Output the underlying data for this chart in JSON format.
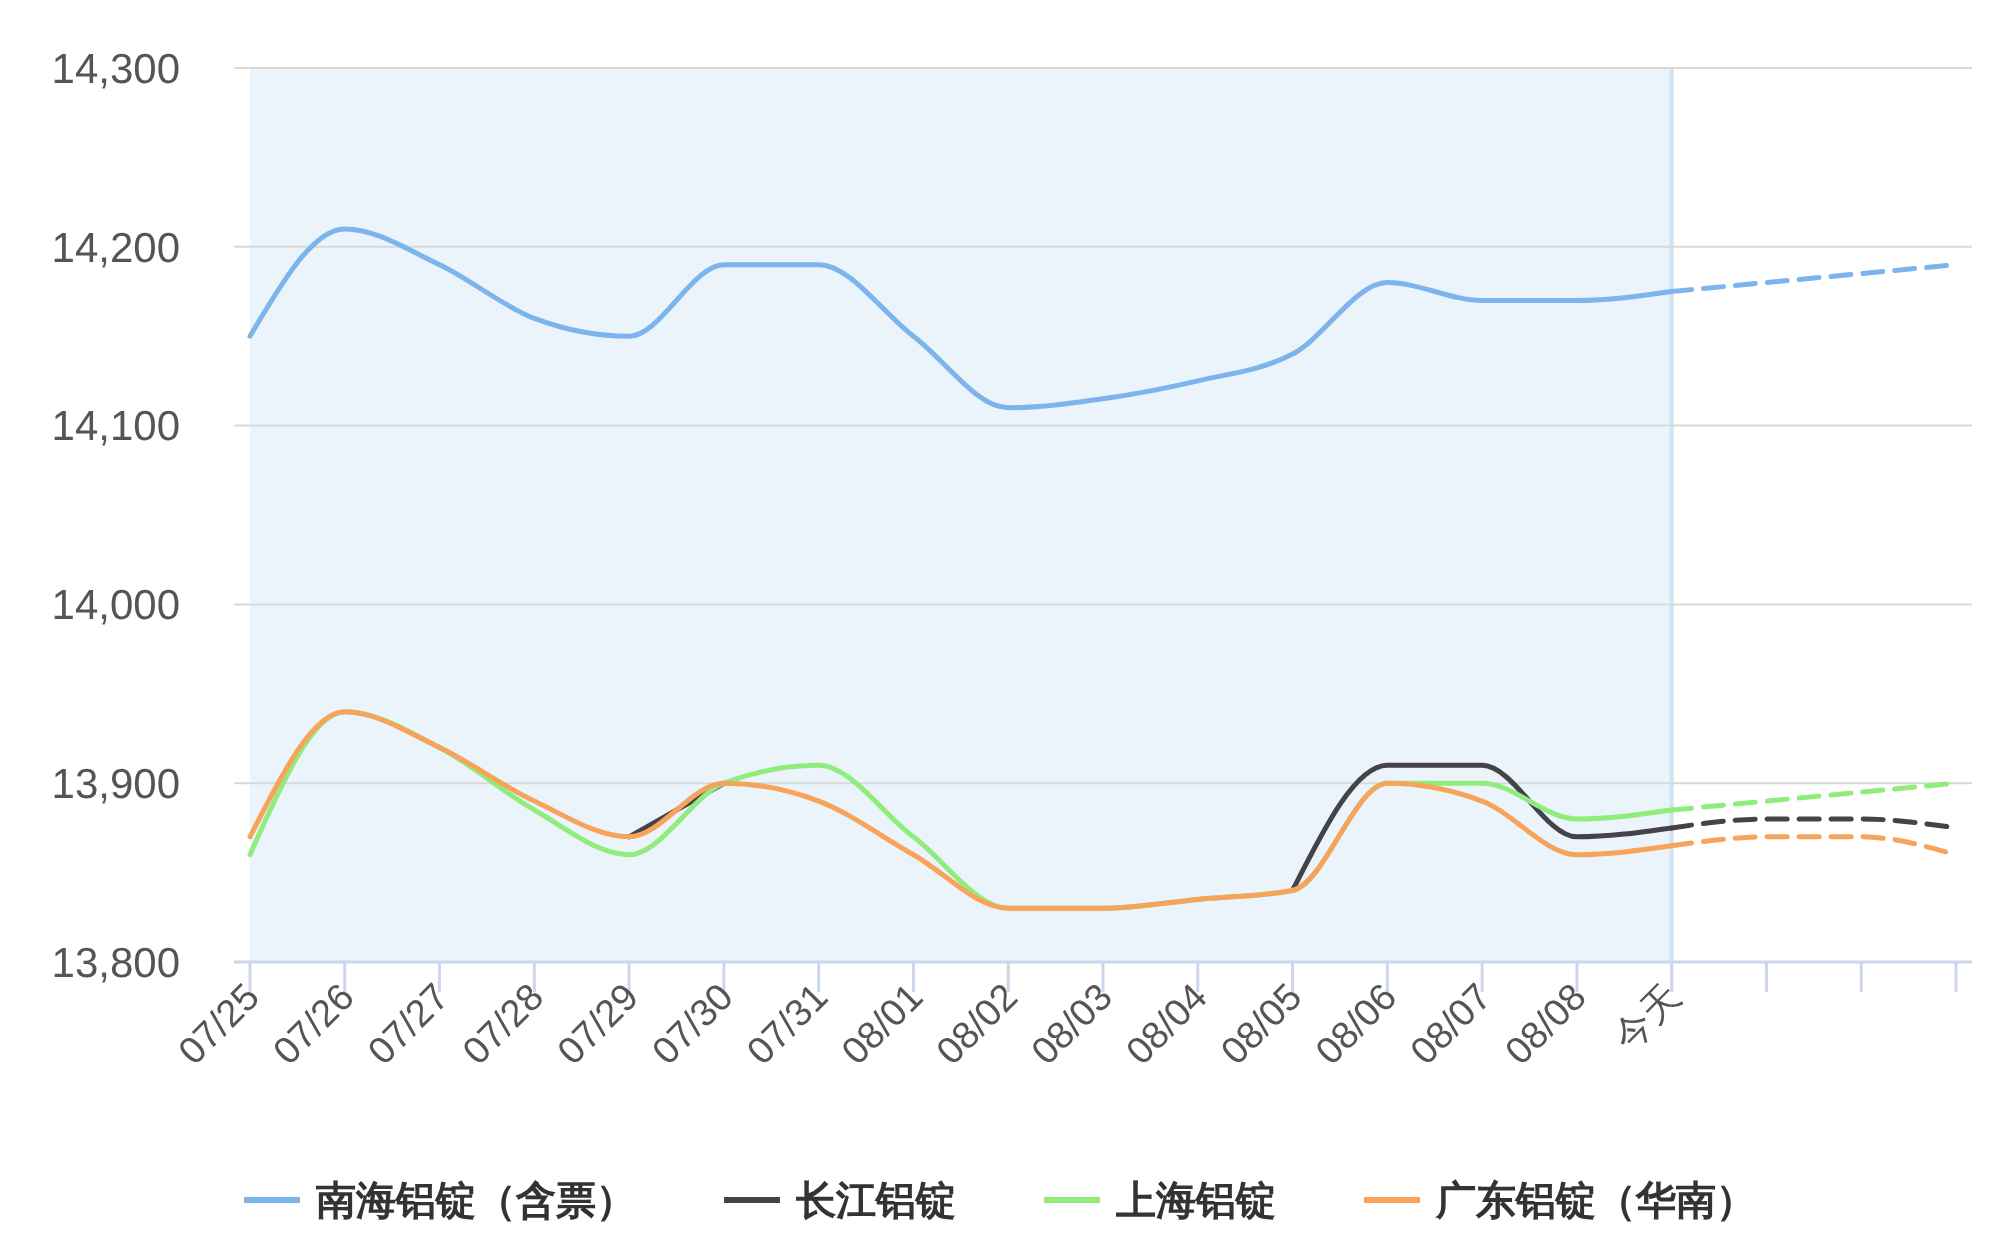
{
  "chart_data": {
    "type": "line",
    "categories": [
      "07/25",
      "07/26",
      "07/27",
      "07/28",
      "07/29",
      "07/30",
      "07/31",
      "08/01",
      "08/02",
      "08/03",
      "08/04",
      "08/05",
      "08/06",
      "08/07",
      "08/08",
      "今天",
      null,
      null,
      null
    ],
    "ylim": [
      13800,
      14300
    ],
    "yticks": [
      {
        "value": 13800,
        "label": "13,800"
      },
      {
        "value": 13900,
        "label": "13,900"
      },
      {
        "value": 14000,
        "label": "14,000"
      },
      {
        "value": 14100,
        "label": "14,100"
      },
      {
        "value": 14200,
        "label": "14,200"
      },
      {
        "value": 14300,
        "label": "14,300"
      }
    ],
    "grid": "y",
    "legend": "bottom",
    "bands": [
      {
        "axis": "x",
        "from": "07/25",
        "to": "今天",
        "color": "#ebf4fa"
      }
    ],
    "ref_lines": [
      {
        "axis": "x",
        "value": "今天",
        "color": "#cfe3f1"
      }
    ],
    "series": [
      {
        "name": "南海铝锭（含票）",
        "color": "#7cb5ec",
        "values": [
          14150,
          14210,
          14190,
          14160,
          14150,
          14190,
          14190,
          14150,
          14110,
          14115,
          14125,
          14140,
          14180,
          14170,
          14170,
          14175,
          null,
          null,
          null
        ]
      },
      {
        "name": "长江铝锭",
        "color": "#434348",
        "values": [
          null,
          null,
          null,
          null,
          13870,
          13900,
          null,
          null,
          null,
          null,
          null,
          13840,
          13910,
          13910,
          13870,
          13875,
          null,
          null,
          null
        ]
      },
      {
        "name": "上海铝锭",
        "color": "#90ed7d",
        "values": [
          13860,
          13940,
          13920,
          13885,
          13860,
          13900,
          13910,
          13870,
          13830,
          13830,
          13835,
          13840,
          13900,
          13900,
          13880,
          13885,
          null,
          null,
          null
        ]
      },
      {
        "name": "广东铝锭（华南）",
        "color": "#f7a35c",
        "values": [
          13870,
          13940,
          13920,
          13890,
          13870,
          13900,
          13890,
          13860,
          13830,
          13830,
          13835,
          13840,
          13900,
          13890,
          13860,
          13865,
          null,
          null,
          null
        ]
      },
      {
        "color": "#7cb5ec",
        "line_style": "dashed",
        "values": [
          null,
          null,
          null,
          null,
          null,
          null,
          null,
          null,
          null,
          null,
          null,
          null,
          null,
          null,
          null,
          14175,
          14180,
          14185,
          14190
        ]
      },
      {
        "color": "#434348",
        "line_style": "dashed",
        "values": [
          null,
          null,
          null,
          null,
          null,
          null,
          null,
          null,
          null,
          null,
          null,
          null,
          null,
          null,
          null,
          13875,
          13880,
          13880,
          13875
        ]
      },
      {
        "color": "#90ed7d",
        "line_style": "dashed",
        "values": [
          null,
          null,
          null,
          null,
          null,
          null,
          null,
          null,
          null,
          null,
          null,
          null,
          null,
          null,
          null,
          13885,
          13890,
          13895,
          13900
        ]
      },
      {
        "color": "#f7a35c",
        "line_style": "dashed",
        "values": [
          null,
          null,
          null,
          null,
          null,
          null,
          null,
          null,
          null,
          null,
          null,
          null,
          null,
          null,
          null,
          13865,
          13870,
          13870,
          13860
        ]
      }
    ]
  }
}
